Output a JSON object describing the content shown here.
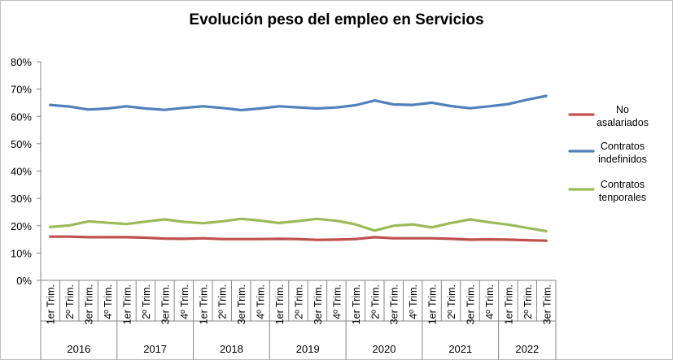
{
  "chart_data": {
    "type": "line",
    "title": "Evolución peso del empleo en Servicios",
    "xlabel": "",
    "ylabel": "",
    "ylim": [
      0,
      0.8
    ],
    "yticks": [
      "0%",
      "10%",
      "20%",
      "30%",
      "40%",
      "50%",
      "60%",
      "70%",
      "80%"
    ],
    "grid": false,
    "legend_position": "right",
    "categories": [
      "1er Trim.",
      "2º Trim.",
      "3er Trim.",
      "4º Trim.",
      "1er Trim.",
      "2º Trim.",
      "3er Trim.",
      "4º Trim.",
      "1er Trim.",
      "2º Trim.",
      "3er Trim.",
      "4º Trim.",
      "1er Trim.",
      "2º Trim.",
      "3er Trim.",
      "4º Trim.",
      "1er Trim.",
      "2º Trim.",
      "3er Trim.",
      "4º Trim.",
      "1er Trim.",
      "2º Trim.",
      "3er Trim.",
      "4º Trim.",
      "1er Trim.",
      "2º Trim.",
      "3er Trim."
    ],
    "years": [
      {
        "label": "2016",
        "span": 4
      },
      {
        "label": "2017",
        "span": 4
      },
      {
        "label": "2018",
        "span": 4
      },
      {
        "label": "2019",
        "span": 4
      },
      {
        "label": "2020",
        "span": 4
      },
      {
        "label": "2021",
        "span": 4
      },
      {
        "label": "2022",
        "span": 3
      }
    ],
    "series": [
      {
        "name": "No asalariados",
        "legend_lines": [
          "No",
          "asalariados"
        ],
        "color": "#c0504d",
        "values": [
          0.16,
          0.16,
          0.158,
          0.158,
          0.158,
          0.156,
          0.153,
          0.152,
          0.154,
          0.151,
          0.151,
          0.151,
          0.152,
          0.151,
          0.148,
          0.149,
          0.151,
          0.158,
          0.154,
          0.154,
          0.154,
          0.152,
          0.149,
          0.15,
          0.149,
          0.147,
          0.145
        ]
      },
      {
        "name": "Contratos indefinidos",
        "legend_lines": [
          "Contratos",
          "indefinidos"
        ],
        "color": "#4f81bd",
        "values": [
          0.642,
          0.636,
          0.625,
          0.629,
          0.637,
          0.629,
          0.624,
          0.631,
          0.637,
          0.631,
          0.623,
          0.629,
          0.637,
          0.633,
          0.629,
          0.633,
          0.641,
          0.658,
          0.644,
          0.642,
          0.65,
          0.638,
          0.63,
          0.637,
          0.645,
          0.661,
          0.675
        ]
      },
      {
        "name": "Contratos tenporales",
        "legend_lines": [
          "Contratos",
          "tenporales"
        ],
        "color": "#9bbb59",
        "values": [
          0.195,
          0.201,
          0.216,
          0.211,
          0.206,
          0.215,
          0.223,
          0.214,
          0.209,
          0.216,
          0.225,
          0.219,
          0.21,
          0.217,
          0.225,
          0.218,
          0.205,
          0.182,
          0.2,
          0.205,
          0.194,
          0.21,
          0.223,
          0.213,
          0.204,
          0.192,
          0.18
        ]
      }
    ]
  }
}
